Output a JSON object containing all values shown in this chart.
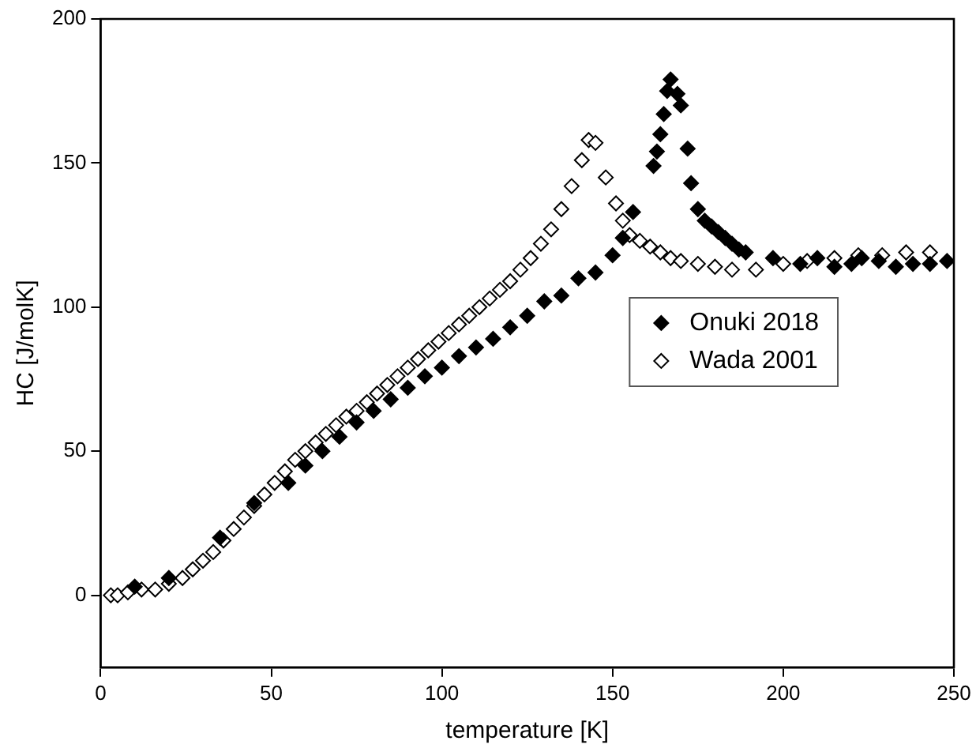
{
  "chart_data": {
    "type": "scatter",
    "xlabel": "temperature [K]",
    "ylabel": "HC [J/molK]",
    "xlim": [
      0,
      250
    ],
    "xticks": [
      0,
      50,
      100,
      150,
      200,
      250
    ],
    "ylim": [
      -25,
      200
    ],
    "yticks": [
      0,
      50,
      100,
      150,
      200
    ],
    "grid": false,
    "legend": "right",
    "marker": "diamond",
    "series": [
      {
        "name": "Onuki 2018",
        "color": "#000000",
        "x": [
          10,
          20,
          35,
          45,
          55,
          60,
          65,
          70,
          75,
          80,
          85,
          90,
          95,
          100,
          105,
          110,
          115,
          120,
          125,
          130,
          135,
          140,
          145,
          150,
          153,
          156,
          162,
          163,
          164,
          165,
          166,
          167,
          169,
          170,
          172,
          173,
          175,
          177,
          179,
          181,
          183,
          185,
          187,
          189,
          197,
          205,
          210,
          215,
          220,
          223,
          228,
          233,
          238,
          243,
          248
        ],
        "values": [
          3,
          6,
          20,
          32,
          39,
          45,
          50,
          55,
          60,
          64,
          68,
          72,
          76,
          79,
          83,
          86,
          89,
          93,
          97,
          102,
          104,
          110,
          112,
          118,
          124,
          133,
          149,
          154,
          160,
          167,
          175,
          179,
          174,
          170,
          155,
          143,
          134,
          130,
          128,
          126,
          124,
          122,
          120,
          119,
          117,
          115,
          117,
          114,
          115,
          117,
          116,
          114,
          115,
          115,
          116
        ]
      },
      {
        "name": "Wada 2001",
        "color": "#000000",
        "x": [
          3,
          5,
          8,
          12,
          16,
          20,
          24,
          27,
          30,
          33,
          36,
          39,
          42,
          45,
          48,
          51,
          54,
          57,
          60,
          63,
          66,
          69,
          72,
          75,
          78,
          81,
          84,
          87,
          90,
          93,
          96,
          99,
          102,
          105,
          108,
          111,
          114,
          117,
          120,
          123,
          126,
          129,
          132,
          135,
          138,
          141,
          143,
          145,
          148,
          151,
          153,
          155,
          158,
          161,
          164,
          167,
          170,
          175,
          180,
          185,
          192,
          200,
          207,
          215,
          222,
          229,
          236,
          243
        ],
        "values": [
          0,
          0,
          1,
          2,
          2,
          4,
          6,
          9,
          12,
          15,
          19,
          23,
          27,
          31,
          35,
          39,
          43,
          47,
          50,
          53,
          56,
          59,
          62,
          64,
          67,
          70,
          73,
          76,
          79,
          82,
          85,
          88,
          91,
          94,
          97,
          100,
          103,
          106,
          109,
          113,
          117,
          122,
          127,
          134,
          142,
          151,
          158,
          157,
          145,
          136,
          130,
          125,
          123,
          121,
          119,
          117,
          116,
          115,
          114,
          113,
          113,
          115,
          116,
          117,
          118,
          118,
          119,
          119
        ]
      }
    ]
  }
}
